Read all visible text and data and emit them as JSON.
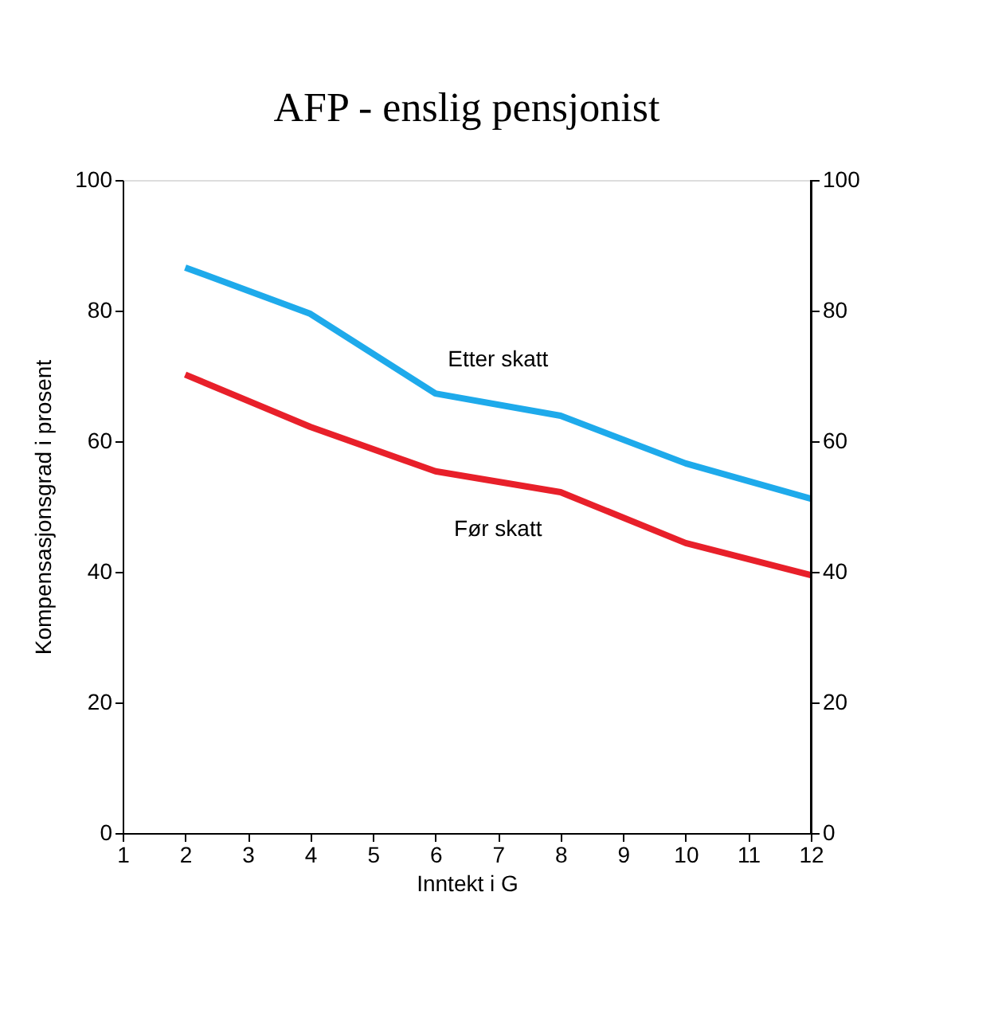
{
  "chart_data": {
    "type": "line",
    "title": "AFP - enslig pensjonist",
    "xlabel": "Inntekt i G",
    "ylabel": "Kompensasjonsgrad i prosent",
    "x": [
      2,
      4,
      6,
      8,
      10,
      12
    ],
    "series": [
      {
        "name": "Etter skatt",
        "color": "#1eaaeb",
        "values": [
          86.6,
          79.5,
          67.3,
          63.9,
          56.6,
          51.2
        ]
      },
      {
        "name": "Før skatt",
        "color": "#e8202a",
        "values": [
          70.2,
          62.2,
          55.4,
          52.2,
          44.4,
          39.5
        ]
      }
    ],
    "xlim": [
      1,
      12
    ],
    "xticks": [
      1,
      2,
      3,
      4,
      5,
      6,
      7,
      8,
      9,
      10,
      11,
      12
    ],
    "ylim": [
      0,
      100
    ],
    "yticks": [
      0,
      20,
      40,
      60,
      80,
      100
    ],
    "y2lim": [
      0,
      100
    ],
    "y2ticks": [
      0,
      20,
      40,
      60,
      80,
      100
    ],
    "grid": false,
    "legend": false,
    "marker": "none",
    "line_style": "solid"
  }
}
